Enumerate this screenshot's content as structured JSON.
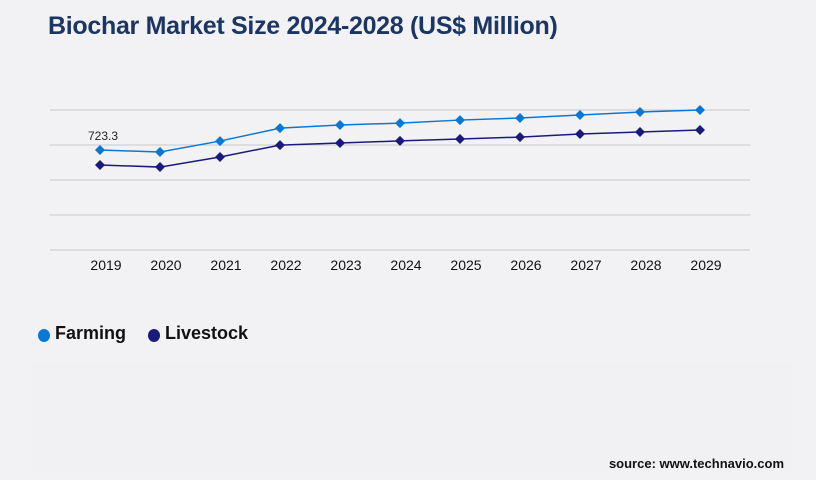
{
  "chart_data": {
    "type": "line",
    "title": "Biochar Market Size 2024-2028 (US$ Million)",
    "xlabel": "",
    "ylabel": "",
    "categories": [
      "2019",
      "2020",
      "2021",
      "2022",
      "2023",
      "2024",
      "2025",
      "2026",
      "2027",
      "2028",
      "2029"
    ],
    "ylim": [
      0,
      1266
    ],
    "grid": true,
    "legend_position": "bottom-left",
    "series": [
      {
        "name": "Farming",
        "color": "#0a78d2",
        "values": [
          723.3,
          709,
          788,
          882,
          904,
          918,
          940,
          955,
          977,
          998,
          1013
        ]
      },
      {
        "name": "Livestock",
        "color": "#1a1a7a",
        "values": [
          615,
          600,
          673,
          759,
          774,
          789,
          803,
          817,
          839,
          854,
          868
        ]
      }
    ],
    "annotations": [
      {
        "series": 0,
        "index": 0,
        "label": "723.3"
      }
    ]
  },
  "source": "source: www.technavio.com"
}
